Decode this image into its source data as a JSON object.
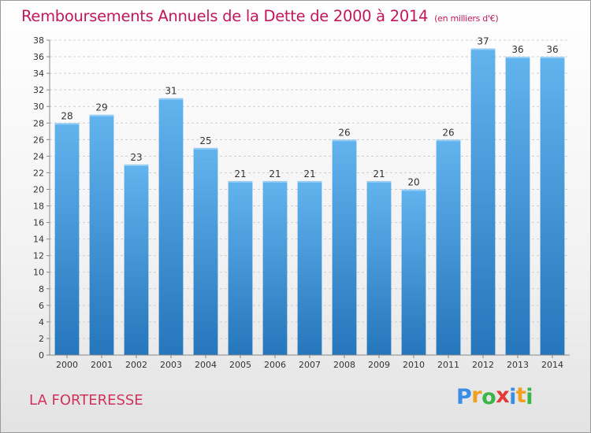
{
  "header": {
    "title": "Remboursements Annuels de la Dette de 2000 à 2014",
    "unit": "(en milliers d'€)"
  },
  "footer": {
    "city": "LA FORTERESSE",
    "logo": {
      "letters": [
        "P",
        "r",
        "o",
        "x",
        "i",
        "t",
        "i"
      ],
      "colors": [
        "#3a8ee6",
        "#f0a020",
        "#3bb54a",
        "#e53935",
        "#3a8ee6",
        "#f0a020",
        "#3bb54a"
      ]
    }
  },
  "colors": {
    "bar_light": "#62b4ee",
    "bar_dark": "#2576bb",
    "title": "#c2185b",
    "grid": "#cfcfcf",
    "axis": "#888888"
  },
  "chart_data": {
    "type": "bar",
    "title": "Remboursements Annuels de la Dette de 2000 à 2014",
    "subtitle": "(en milliers d'€)",
    "xlabel": "",
    "ylabel": "",
    "categories": [
      "2000",
      "2001",
      "2002",
      "2003",
      "2004",
      "2005",
      "2006",
      "2007",
      "2008",
      "2009",
      "2010",
      "2011",
      "2012",
      "2013",
      "2014"
    ],
    "values": [
      28,
      29,
      23,
      31,
      25,
      21,
      21,
      21,
      26,
      21,
      20,
      26,
      37,
      36,
      36
    ],
    "ylim": [
      0,
      38
    ],
    "yticks": [
      0,
      2,
      4,
      6,
      8,
      10,
      12,
      14,
      16,
      18,
      20,
      22,
      24,
      26,
      28,
      30,
      32,
      34,
      36,
      38
    ],
    "grid": true,
    "legend": "none"
  }
}
